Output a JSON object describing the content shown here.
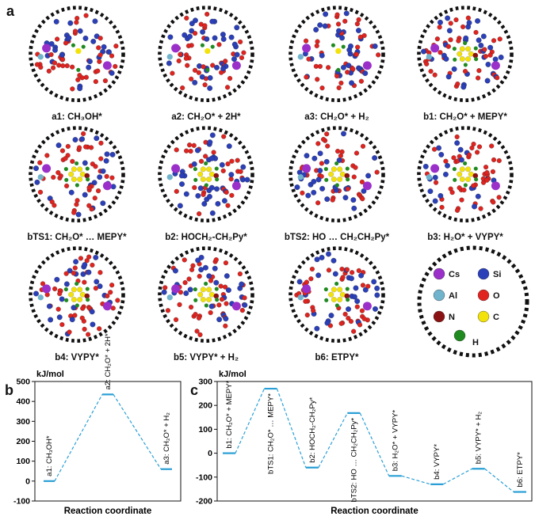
{
  "panel_labels": {
    "a": "a",
    "b": "b",
    "c": "c"
  },
  "structures": [
    {
      "label": "a1: CH₃OH*"
    },
    {
      "label": "a2: CH₂O* + 2H*"
    },
    {
      "label": "a3: CH₂O* + H₂"
    },
    {
      "label": "b1: CH₂O* + MEPY*"
    },
    {
      "label": "bTS1: CH₂O* … MEPY*"
    },
    {
      "label": "b2: HOCH₂-CH₂Py*"
    },
    {
      "label": "bTS2: HO … CH₂CH₂Py*"
    },
    {
      "label": "b3: H₂O* + VYPY*"
    },
    {
      "label": "b4: VYPY*"
    },
    {
      "label": "b5: VYPY* + H₂"
    },
    {
      "label": "b6: ETPY*"
    }
  ],
  "legend": [
    {
      "symbol": "Cs",
      "color": "#9b2fc9"
    },
    {
      "symbol": "Si",
      "color": "#2a3fb8"
    },
    {
      "symbol": "Al",
      "color": "#6fb4cc"
    },
    {
      "symbol": "O",
      "color": "#e0231f"
    },
    {
      "symbol": "N",
      "color": "#8b1212"
    },
    {
      "symbol": "C",
      "color": "#f2e20a"
    },
    {
      "symbol": "H",
      "color": "#1f8a1f"
    }
  ],
  "colors": {
    "line": "#2a9fd6",
    "level": "#2a9fd6"
  },
  "chart_data": [
    {
      "type": "line",
      "panel": "b",
      "ylabel": "kJ/mol",
      "xlabel": "Reaction coordinate",
      "ylim": [
        -100,
        500
      ],
      "yticks": [
        -100,
        0,
        100,
        200,
        300,
        400,
        500
      ],
      "points": [
        {
          "label": "a1: CH₃OH*",
          "value": 0
        },
        {
          "label": "a2: CH₂O* + 2H*",
          "value": 435
        },
        {
          "label": "a3: CH₂O* + H₂",
          "value": 60
        }
      ]
    },
    {
      "type": "line",
      "panel": "c",
      "ylabel": "kJ/mol",
      "xlabel": "Reaction coordinate",
      "ylim": [
        -200,
        300
      ],
      "yticks": [
        -200,
        -100,
        0,
        100,
        200,
        300
      ],
      "points": [
        {
          "label": "b1: CH₂O* + MEPY*",
          "value": 0
        },
        {
          "label": "bTS1: CH₂O* … MEPY*",
          "value": 270
        },
        {
          "label": "b2: HOCH₂-CH₂Py*",
          "value": -60
        },
        {
          "label": "bTS2: HO … CH₂CH₂Py*",
          "value": 168
        },
        {
          "label": "b3: H₂O* + VYPY*",
          "value": -95
        },
        {
          "label": "b4: VYPY*",
          "value": -130
        },
        {
          "label": "b5: VYPY* + H₂",
          "value": -65
        },
        {
          "label": "b6: ETPY*",
          "value": -162
        }
      ]
    }
  ]
}
